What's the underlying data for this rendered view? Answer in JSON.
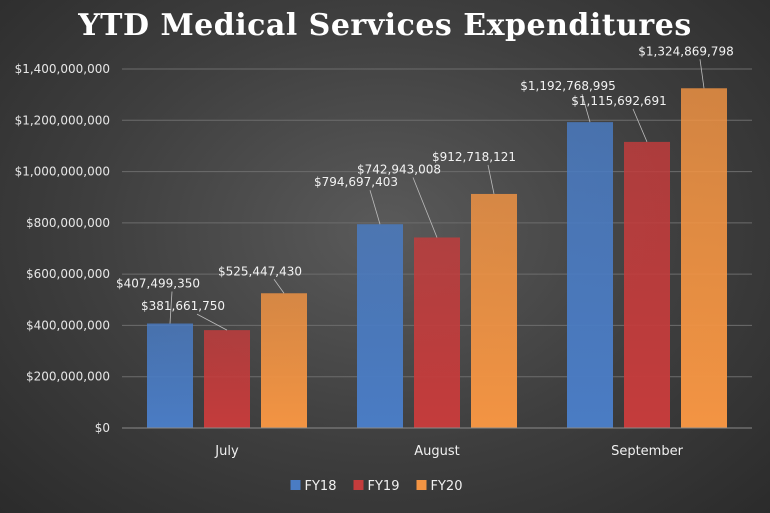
{
  "chart_data": {
    "type": "bar",
    "title": "YTD Medical Services Expenditures",
    "xlabel": "",
    "ylabel": "",
    "categories": [
      "July",
      "August",
      "September"
    ],
    "series": [
      {
        "name": "FY18",
        "color": "#4a7cc4",
        "values": [
          407499350,
          794697403,
          1192768995
        ],
        "labels": [
          "$407,499,350",
          "$794,697,403",
          "$1,192,768,995"
        ]
      },
      {
        "name": "FY19",
        "color": "#c43c3c",
        "values": [
          381661750,
          742943008,
          1115692691
        ],
        "labels": [
          "$381,661,750",
          "$742,943,008",
          "$1,115,692,691"
        ]
      },
      {
        "name": "FY20",
        "color": "#f39443",
        "values": [
          525447430,
          912718121,
          1324869798
        ],
        "labels": [
          "$525,447,430",
          "$912,718,121",
          "$1,324,869,798"
        ]
      }
    ],
    "ylim": [
      0,
      1400000000
    ],
    "yticks": [
      0,
      200000000,
      400000000,
      600000000,
      800000000,
      1000000000,
      1200000000,
      1400000000
    ],
    "ytick_labels": [
      "$0",
      "$200,000,000",
      "$400,000,000",
      "$600,000,000",
      "$800,000,000",
      "$1,000,000,000",
      "$1,200,000,000",
      "$1,400,000,000"
    ],
    "grid": true,
    "legend_position": "bottom"
  }
}
